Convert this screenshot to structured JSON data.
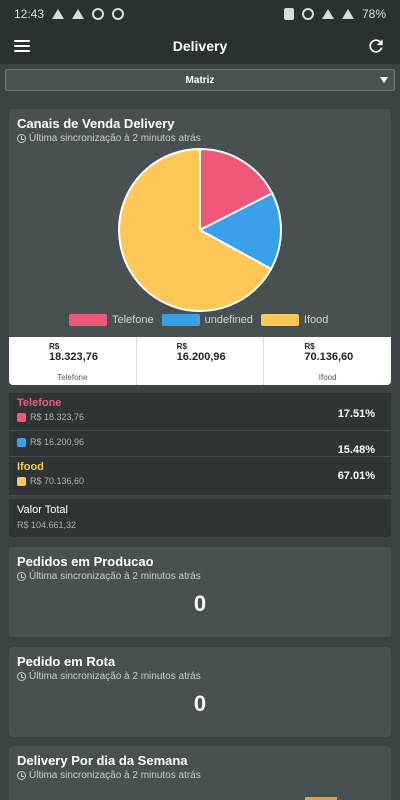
{
  "status_bar": {
    "time": "12:43",
    "battery": "78%"
  },
  "appbar": {
    "title": "Delivery"
  },
  "branch_select": {
    "value": "Matriz"
  },
  "sync_text": "Última sincronização à 2 minutos atrás",
  "canais": {
    "title": "Canais de Venda Delivery",
    "legend": [
      {
        "label": "Telefone",
        "color": "#f0587a"
      },
      {
        "label": "undefined",
        "color": "#3aa0e8"
      },
      {
        "label": "Ifood",
        "color": "#fdc857"
      }
    ],
    "values": [
      {
        "currency": "R$",
        "amount": "18.323,76",
        "label": "Telefone"
      },
      {
        "currency": "R$",
        "amount": "16.200,96",
        "label": ""
      },
      {
        "currency": "R$",
        "amount": "70.136,60",
        "label": "Ifood"
      }
    ]
  },
  "chart_data": {
    "type": "pie",
    "categories": [
      "Telefone",
      "undefined",
      "Ifood"
    ],
    "values": [
      18323.76,
      16200.96,
      70136.6
    ],
    "percentages": [
      17.51,
      15.48,
      67.01
    ],
    "colors": [
      "#f0587a",
      "#3aa0e8",
      "#fdc857"
    ],
    "title": "Canais de Venda Delivery",
    "legend_position": "bottom"
  },
  "channel_rows": [
    {
      "name": "Telefone",
      "value": "R$ 18.323,76",
      "pct": "17.51%",
      "color": "#f0587a"
    },
    {
      "name": "",
      "value": "R$ 16.200,96",
      "pct": "15.48%",
      "color": "#3aa0e8"
    },
    {
      "name": "Ifood",
      "value": "R$ 70.136,60",
      "pct": "67.01%",
      "color": "#fdc857"
    }
  ],
  "total": {
    "label": "Valor Total",
    "value": "R$ 104.661,32"
  },
  "producao": {
    "title": "Pedidos em Producao",
    "count": "0"
  },
  "rota": {
    "title": "Pedido em Rota",
    "count": "0"
  },
  "semana": {
    "title": "Delivery Por dia da Semana"
  }
}
